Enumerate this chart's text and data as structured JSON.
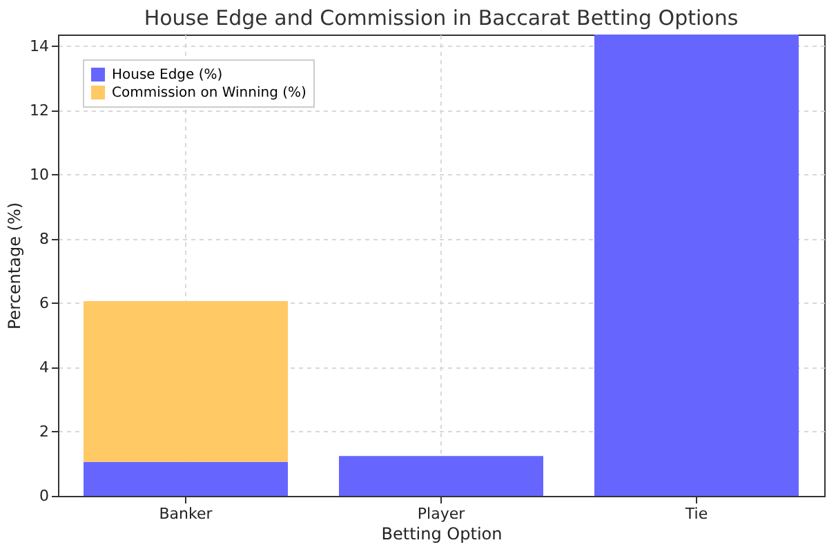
{
  "chart_data": {
    "type": "bar",
    "title": "House Edge and Commission in Baccarat Betting Options",
    "xlabel": "Betting Option",
    "ylabel": "Percentage (%)",
    "categories": [
      "Banker",
      "Player",
      "Tie"
    ],
    "series": [
      {
        "name": "House Edge (%)",
        "color": "#6666ff",
        "values": [
          1.06,
          1.24,
          14.36
        ]
      },
      {
        "name": "Commission on Winning (%)",
        "color": "#ffc966",
        "values": [
          5,
          null,
          null
        ]
      }
    ],
    "stacked": true,
    "ylim": [
      0,
      14.36
    ],
    "yticks": [
      0,
      2,
      4,
      6,
      8,
      10,
      12,
      14
    ],
    "grid": true,
    "legend": "top left"
  }
}
